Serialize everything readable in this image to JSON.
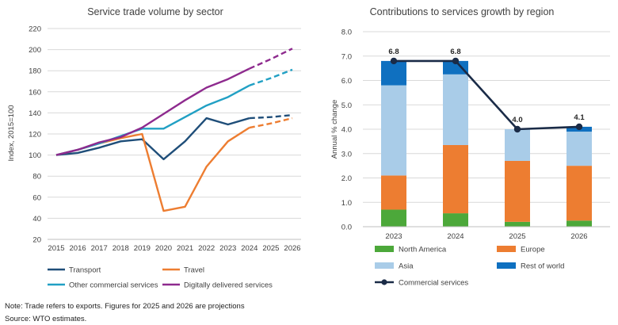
{
  "chart_data": [
    {
      "type": "line",
      "title": "Service trade volume by sector",
      "ylabel": "Index, 2015=100",
      "ylim": [
        20,
        220
      ],
      "yticks": [
        20,
        40,
        60,
        80,
        100,
        120,
        140,
        160,
        180,
        200,
        220
      ],
      "x": [
        "2015",
        "2016",
        "2017",
        "2018",
        "2019",
        "2020",
        "2021",
        "2022",
        "2023",
        "2024",
        "2025",
        "2026"
      ],
      "projection_from": "2024",
      "grid": true,
      "legend": "bottom",
      "series": [
        {
          "name": "Transport",
          "color": "#1f4e79",
          "values": [
            100,
            102,
            107,
            113,
            115,
            96,
            113,
            135,
            129,
            135,
            136,
            138
          ]
        },
        {
          "name": "Travel",
          "color": "#ed7d31",
          "values": [
            100,
            105,
            111,
            116,
            120,
            47,
            51,
            89,
            113,
            126,
            130,
            135
          ]
        },
        {
          "name": "Other commercial services",
          "color": "#21a0c4",
          "values": [
            100,
            105,
            111,
            118,
            125,
            125,
            136,
            147,
            155,
            166,
            173,
            181
          ]
        },
        {
          "name": "Digitally delivered services",
          "color": "#8e2a8e",
          "values": [
            100,
            105,
            112,
            117,
            126,
            139,
            152,
            164,
            172,
            182,
            191,
            201
          ]
        }
      ]
    },
    {
      "type": "bar",
      "stacked": true,
      "title": "Contributions to services growth by region",
      "ylabel": "Annual % change",
      "ylim": [
        0,
        8
      ],
      "yticks": [
        "0.0",
        "1.0",
        "2.0",
        "3.0",
        "4.0",
        "5.0",
        "6.0",
        "7.0",
        "8.0"
      ],
      "categories": [
        "2023",
        "2024",
        "2025",
        "2026"
      ],
      "grid": true,
      "legend": "bottom",
      "series": [
        {
          "name": "North America",
          "color": "#4ca83a",
          "values": [
            0.7,
            0.55,
            0.2,
            0.25
          ]
        },
        {
          "name": "Europe",
          "color": "#ed7d31",
          "values": [
            1.4,
            2.8,
            2.5,
            2.25
          ]
        },
        {
          "name": "Asia",
          "color": "#a9cce8",
          "values": [
            3.7,
            2.9,
            1.3,
            1.4
          ]
        },
        {
          "name": "Rest of world",
          "color": "#0f70c0",
          "values": [
            1.0,
            0.55,
            0.0,
            0.2
          ]
        }
      ],
      "line_series": {
        "name": "Commercial services",
        "color": "#1a2b47",
        "values": [
          6.8,
          6.8,
          4.0,
          4.1
        ],
        "labels": [
          "6.8",
          "6.8",
          "4.0",
          "4.1"
        ]
      }
    }
  ],
  "notes": {
    "note": "Note: Trade refers to exports. Figures for 2025 and 2026 are projections",
    "source": "Source: WTO estimates."
  }
}
